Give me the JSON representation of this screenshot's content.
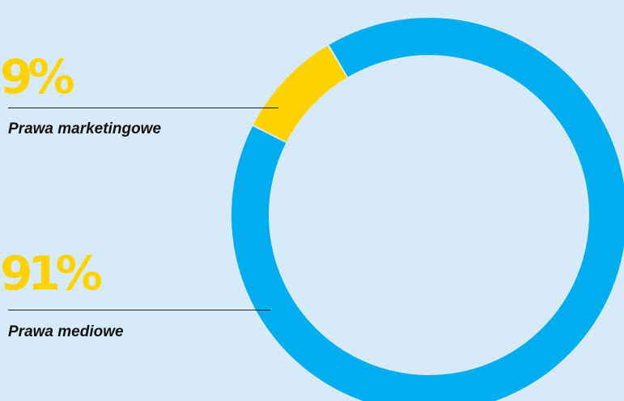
{
  "chart_data": {
    "type": "pie",
    "categories": [
      "Prawa marketingowe",
      "Prawa mediowe"
    ],
    "values": [
      9,
      91
    ],
    "value_labels": [
      "9%",
      "91%"
    ],
    "colors": [
      "#ffd200",
      "#00aeef"
    ],
    "background": "#d6ebf7"
  }
}
